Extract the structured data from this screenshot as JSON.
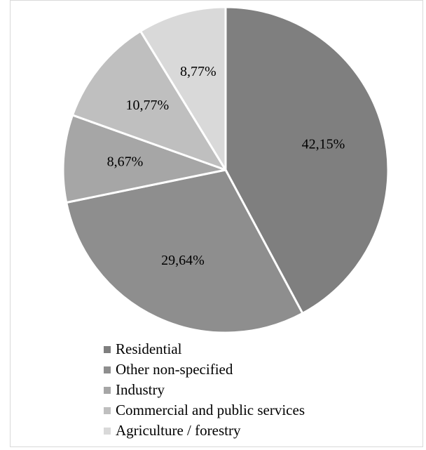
{
  "chart_data": {
    "type": "pie",
    "slices": [
      {
        "label": "Residential",
        "value": 42.15,
        "display": "42,15%",
        "color": "#7f7f7f"
      },
      {
        "label": "Other non-specified",
        "value": 29.64,
        "display": "29,64%",
        "color": "#8e8e8e"
      },
      {
        "label": "Industry",
        "value": 8.67,
        "display": "8,67%",
        "color": "#a6a6a6"
      },
      {
        "label": "Commercial and public services",
        "value": 10.77,
        "display": "10,77%",
        "color": "#bfbfbf"
      },
      {
        "label": "Agriculture / forestry",
        "value": 8.77,
        "display": "8,77%",
        "color": "#d9d9d9"
      }
    ],
    "start_angle": "12 o'clock",
    "direction": "clockwise",
    "legend_position": "bottom",
    "slice_separator_color": "#ffffff"
  }
}
